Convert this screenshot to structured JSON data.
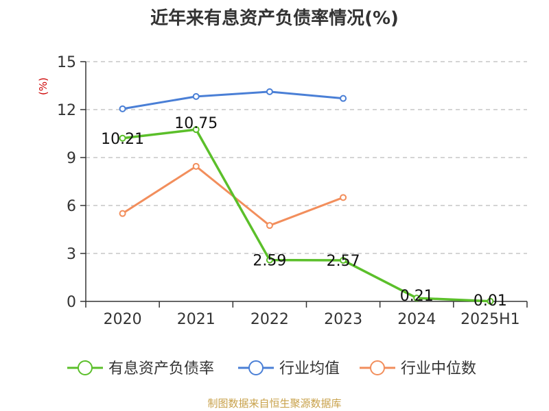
{
  "chart_data": {
    "type": "line",
    "title": "近年来有息资产负债率情况(%)",
    "ylabel": "(%)",
    "categories": [
      "2020",
      "2021",
      "2022",
      "2023",
      "2024",
      "2025H1"
    ],
    "ylim": [
      0,
      15
    ],
    "yticks": [
      0,
      3,
      6,
      9,
      12,
      15
    ],
    "grid": true,
    "legend_position": "bottom",
    "series": [
      {
        "name": "有息资产负债率",
        "color": "#5bbf2a",
        "values": [
          10.21,
          10.75,
          2.59,
          2.57,
          0.21,
          0.01
        ],
        "labels": [
          "10.21",
          "10.75",
          "2.59",
          "2.57",
          "0.21",
          "0.01"
        ]
      },
      {
        "name": "行业均值",
        "color": "#4a7fd6",
        "values": [
          12.05,
          12.82,
          13.12,
          12.7,
          null,
          null
        ]
      },
      {
        "name": "行业中位数",
        "color": "#f28e5c",
        "values": [
          5.5,
          8.45,
          4.75,
          6.5,
          null,
          null
        ]
      }
    ],
    "source": "制图数据来自恒生聚源数据库"
  }
}
